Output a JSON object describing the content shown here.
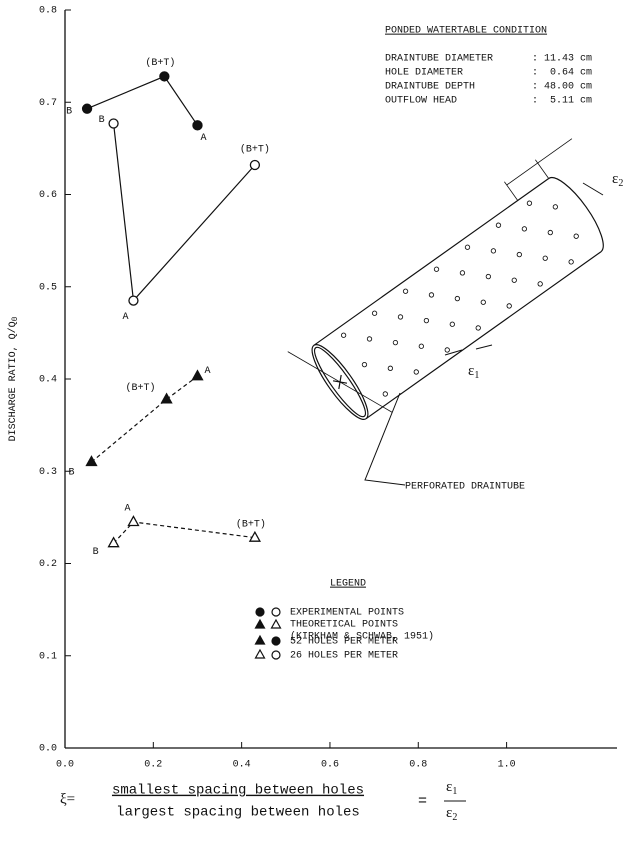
{
  "chart_data": {
    "type": "scatter",
    "y_label": {
      "main": "DISCHARGE RATIO, Q/Q",
      "subscript": "0"
    },
    "xlim": [
      0,
      1.25
    ],
    "ylim": [
      0,
      0.8
    ],
    "xticks": [
      {
        "value": 0,
        "label": "0.0"
      },
      0.2,
      0.4,
      0.6,
      0.8,
      {
        "value": 1,
        "label": "1.0"
      }
    ],
    "yticks": [
      {
        "value": 0,
        "label": "0.0"
      },
      0.1,
      0.2,
      0.3,
      0.4,
      0.5,
      0.6,
      0.7,
      0.8
    ],
    "series": [
      {
        "marker": "circle",
        "fill": "filled",
        "line": "solid",
        "color": "#111111",
        "x": [
          0.05,
          0.225,
          0.3
        ],
        "values": [
          0.693,
          0.728,
          0.675
        ],
        "point_labels": [
          "B",
          "(B+T)",
          "A"
        ]
      },
      {
        "marker": "circle",
        "fill": "open",
        "line": "solid",
        "color": "#111111",
        "x": [
          0.11,
          0.155,
          0.43
        ],
        "values": [
          0.677,
          0.485,
          0.632
        ],
        "point_labels": [
          "B",
          "A",
          "(B+T)"
        ]
      },
      {
        "marker": "triangle",
        "fill": "filled",
        "line": "dashed",
        "color": "#111111",
        "x": [
          0.06,
          0.23,
          0.3
        ],
        "values": [
          0.31,
          0.378,
          0.403
        ],
        "point_labels": [
          "B",
          "(B+T)",
          "A"
        ]
      },
      {
        "marker": "triangle",
        "fill": "open",
        "line": "dashed",
        "color": "#111111",
        "x": [
          0.11,
          0.155,
          0.43
        ],
        "values": [
          0.222,
          0.245,
          0.228
        ],
        "point_labels": [
          "B",
          "A",
          "(B+T)"
        ]
      }
    ],
    "conditions": {
      "title": "PONDED WATERTABLE CONDITION",
      "rows": [
        [
          "DRAINTUBE DIAMETER",
          ": 11.43 cm"
        ],
        [
          "HOLE DIAMETER",
          ":  0.64 cm"
        ],
        [
          "DRAINTUBE DEPTH",
          ": 48.00 cm"
        ],
        [
          "OUTFLOW HEAD",
          ":  5.11 cm"
        ]
      ]
    },
    "legend": {
      "title": "LEGEND",
      "items": [
        "EXPERIMENTAL POINTS",
        "THEORETICAL POINTS",
        "(KIRKHAM & SCHWAB, 1951)",
        "52 HOLES PER METER",
        "26 HOLES PER METER"
      ]
    },
    "diagram": {
      "label": "PERFORATED DRAINTUBE",
      "eps": "ε",
      "sub1": "1",
      "sub2": "2"
    },
    "formula": {
      "lhs": "ξ=",
      "numerator": "smallest spacing between holes",
      "denominator": "largest spacing between holes",
      "eq": "="
    }
  }
}
